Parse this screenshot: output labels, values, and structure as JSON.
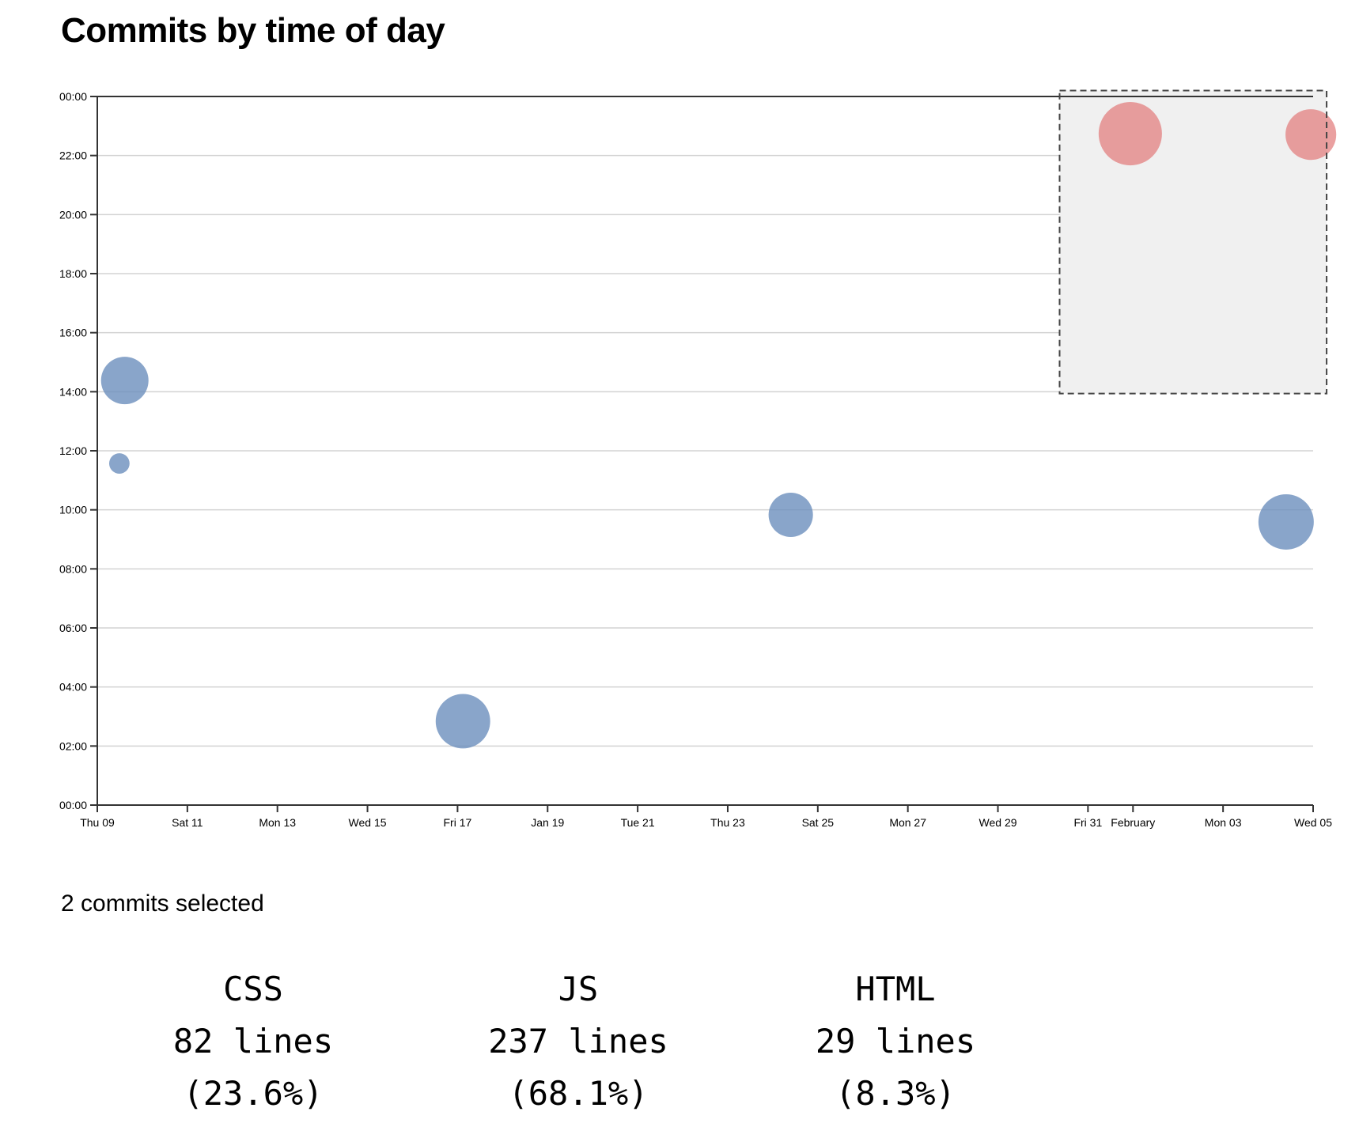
{
  "title": "Commits by time of day",
  "colors": {
    "unselected": "#6b8fbd",
    "selected": "#e38080",
    "grid": "#d3d3d3",
    "axis": "#333333",
    "brush_fill": "#f0f0f0",
    "brush_stroke": "#444444"
  },
  "chart_data": {
    "type": "scatter",
    "title": "Commits by time of day",
    "xlabel": "",
    "ylabel": "",
    "x_domain": [
      "Thu 09",
      "Wed 05"
    ],
    "x_domain_days": [
      0,
      27
    ],
    "ylim_hours": [
      0,
      24
    ],
    "grid": true,
    "x_ticks": [
      {
        "day": 0,
        "label": "Thu 09"
      },
      {
        "day": 2,
        "label": "Sat 11"
      },
      {
        "day": 4,
        "label": "Mon 13"
      },
      {
        "day": 6,
        "label": "Wed 15"
      },
      {
        "day": 8,
        "label": "Fri 17"
      },
      {
        "day": 10,
        "label": "Jan 19"
      },
      {
        "day": 12,
        "label": "Tue 21"
      },
      {
        "day": 14,
        "label": "Thu 23"
      },
      {
        "day": 16,
        "label": "Sat 25"
      },
      {
        "day": 18,
        "label": "Mon 27"
      },
      {
        "day": 20,
        "label": "Wed 29"
      },
      {
        "day": 22,
        "label": "Fri 31"
      },
      {
        "day": 23,
        "label": "February"
      },
      {
        "day": 25,
        "label": "Mon 03"
      },
      {
        "day": 27,
        "label": "Wed 05"
      }
    ],
    "y_ticks": [
      {
        "hour": 24,
        "label": "00:00"
      },
      {
        "hour": 22,
        "label": "22:00"
      },
      {
        "hour": 20,
        "label": "20:00"
      },
      {
        "hour": 18,
        "label": "18:00"
      },
      {
        "hour": 16,
        "label": "16:00"
      },
      {
        "hour": 14,
        "label": "14:00"
      },
      {
        "hour": 12,
        "label": "12:00"
      },
      {
        "hour": 10,
        "label": "10:00"
      },
      {
        "hour": 8,
        "label": "08:00"
      },
      {
        "hour": 6,
        "label": "06:00"
      },
      {
        "hour": 4,
        "label": "04:00"
      },
      {
        "hour": 2,
        "label": "02:00"
      },
      {
        "hour": 0,
        "label": "00:00"
      }
    ],
    "points": [
      {
        "day": 0.61,
        "hour": 14.38,
        "lines": 119,
        "selected": false
      },
      {
        "day": 0.49,
        "hour": 11.57,
        "lines": 22,
        "selected": false
      },
      {
        "day": 8.12,
        "hour": 2.84,
        "lines": 157,
        "selected": false
      },
      {
        "day": 15.4,
        "hour": 9.83,
        "lines": 104,
        "selected": false
      },
      {
        "day": 26.4,
        "hour": 9.59,
        "lines": 162,
        "selected": false
      },
      {
        "day": 22.94,
        "hour": 22.74,
        "lines": 212,
        "selected": true
      },
      {
        "day": 26.95,
        "hour": 22.71,
        "lines": 136,
        "selected": true
      }
    ],
    "brush": {
      "day_start": 21.37,
      "day_end": 27.3,
      "hour_start": 13.94,
      "hour_end": 24.2
    }
  },
  "selection": {
    "count_text": "2 commits selected",
    "breakdown": [
      {
        "lang": "CSS",
        "lines": "82 lines",
        "percent": "(23.6%)"
      },
      {
        "lang": "JS",
        "lines": "237 lines",
        "percent": "(68.1%)"
      },
      {
        "lang": "HTML",
        "lines": "29 lines",
        "percent": "(8.3%)"
      }
    ]
  }
}
